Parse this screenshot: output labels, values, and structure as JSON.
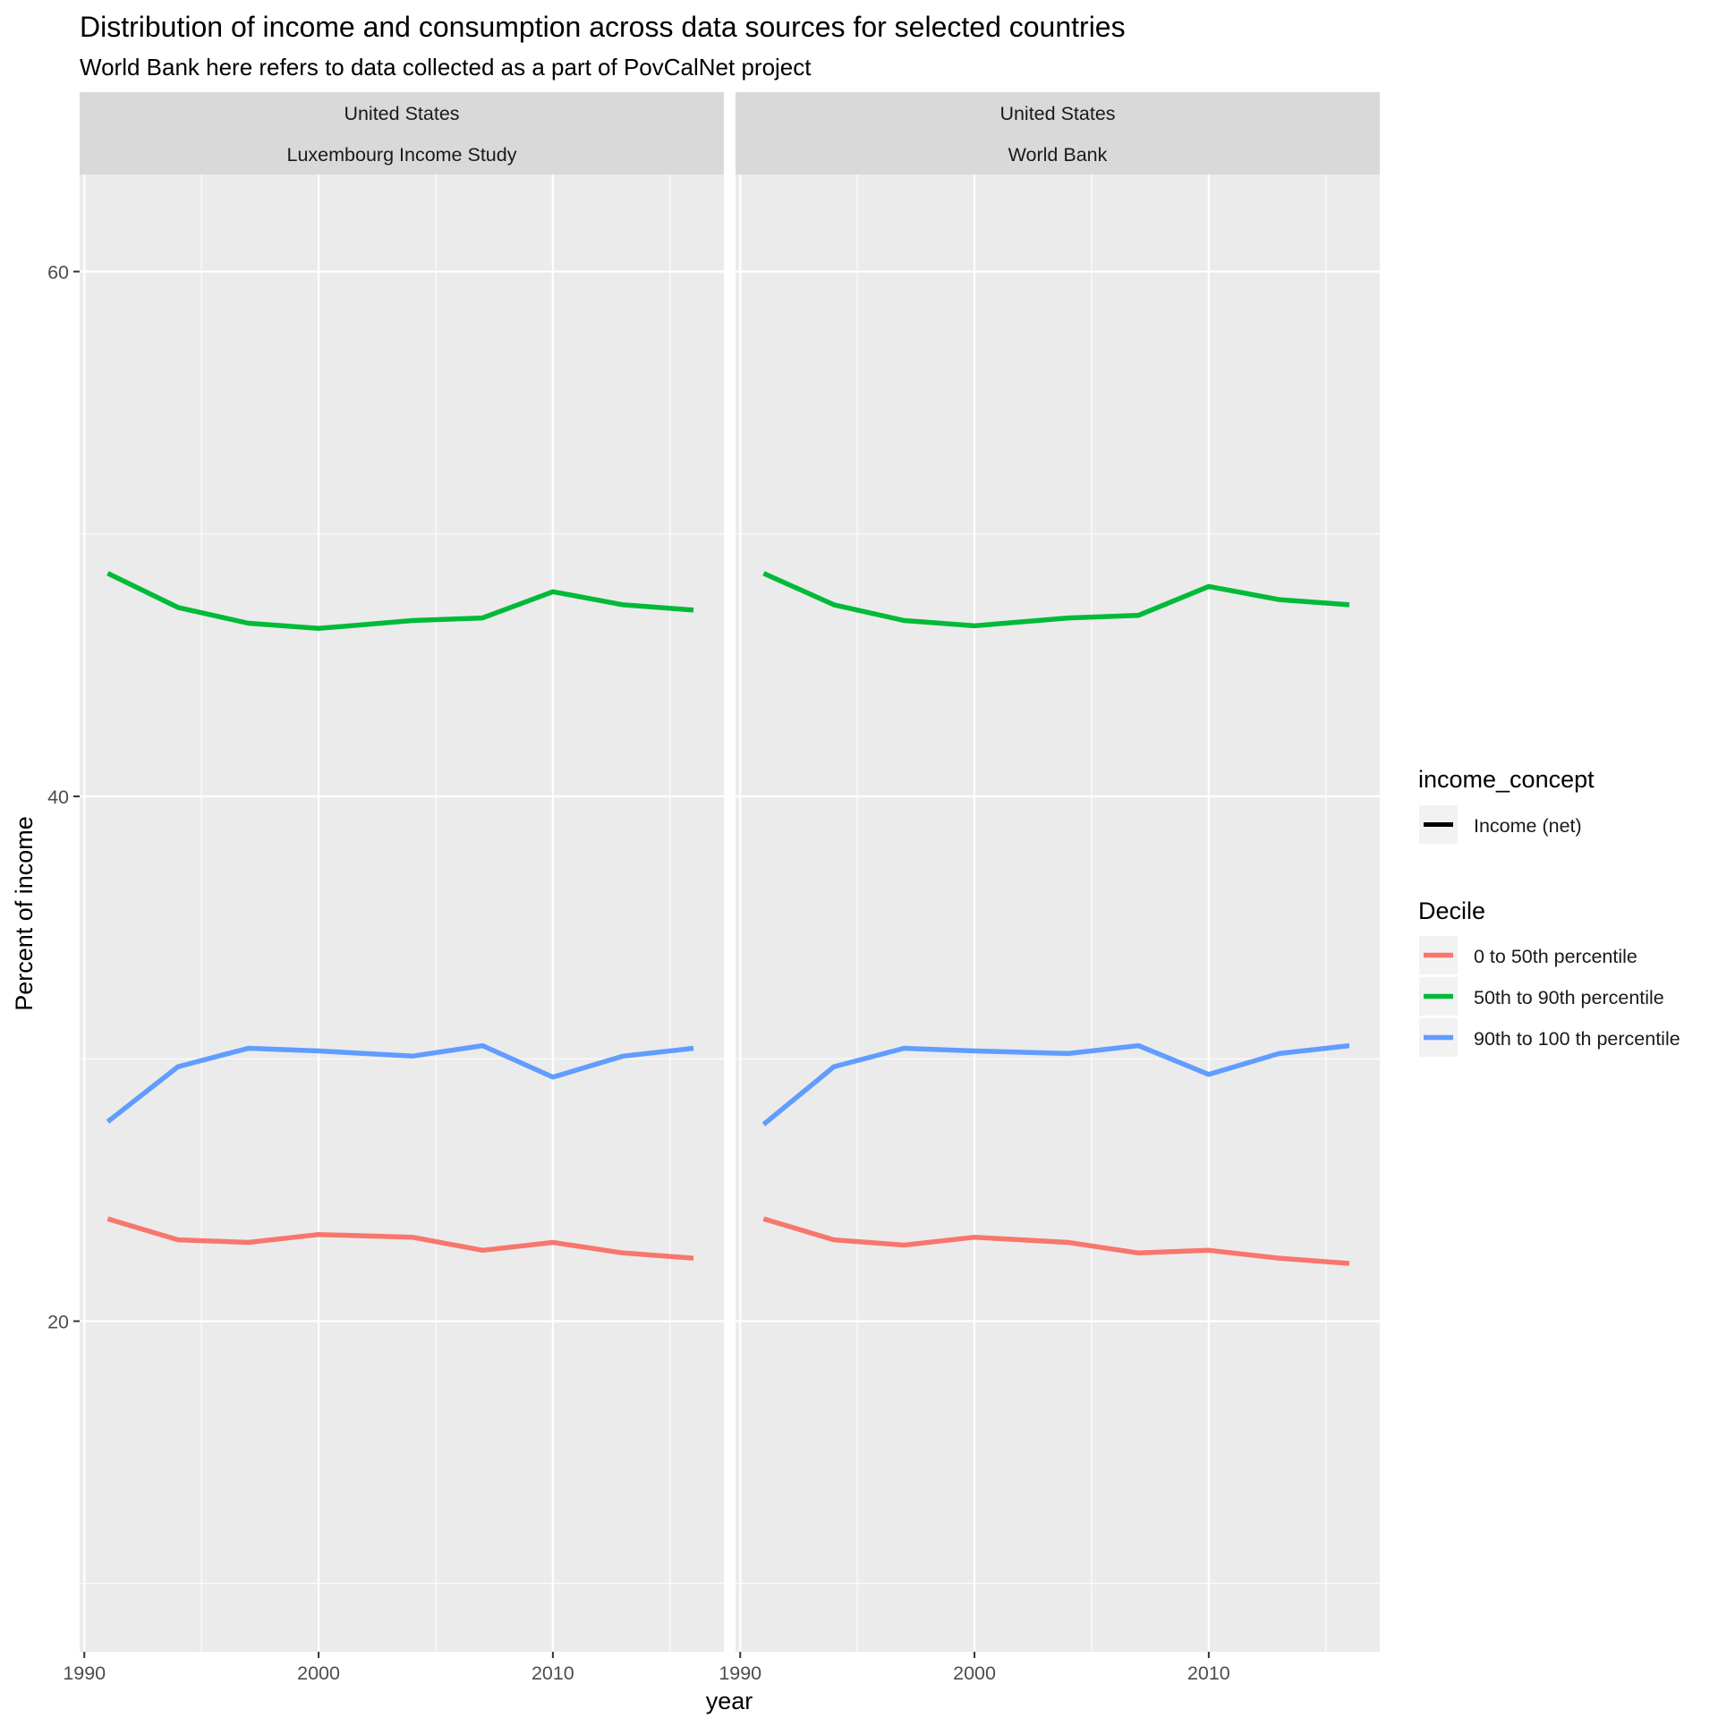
{
  "chart_data": {
    "type": "line",
    "title": "Distribution of income and consumption across data sources for selected countries",
    "subtitle": "World Bank here refers to data collected as a part of PovCalNet project",
    "xlabel": "year",
    "ylabel": "Percent of income",
    "xlim": [
      1989.8,
      2017.3
    ],
    "ylim": [
      7.4,
      63.7
    ],
    "x_ticks": [
      1990,
      2000,
      2010
    ],
    "y_ticks": [
      20,
      40,
      60
    ],
    "x_minor": [
      1995,
      2005,
      2015
    ],
    "y_minor": [
      10,
      30,
      50
    ],
    "grid": true,
    "legend": {
      "position": "right",
      "linetype_title": "income_concept",
      "linetype_entries": [
        "Income (net)"
      ],
      "color_title": "Decile",
      "color_entries": [
        {
          "label": "0 to 50th percentile",
          "color": "#F8766D"
        },
        {
          "label": "50th to 90th percentile",
          "color": "#00BA38"
        },
        {
          "label": "90th to 100 th percentile",
          "color": "#619CFF"
        }
      ]
    },
    "panels": [
      {
        "strip": [
          "United States",
          "Luxembourg Income Study"
        ],
        "series": [
          {
            "name": "0 to 50th percentile",
            "color": "#F8766D",
            "x": [
              1991,
              1994,
              1997,
              2000,
              2004,
              2007,
              2010,
              2013,
              2016
            ],
            "y": [
              23.9,
              23.1,
              23.0,
              23.3,
              23.2,
              22.7,
              23.0,
              22.6,
              22.4
            ]
          },
          {
            "name": "50th to 90th percentile",
            "color": "#00BA38",
            "x": [
              1991,
              1994,
              1997,
              2000,
              2004,
              2007,
              2010,
              2013,
              2016
            ],
            "y": [
              48.5,
              47.2,
              46.6,
              46.4,
              46.7,
              46.8,
              47.8,
              47.3,
              47.1
            ]
          },
          {
            "name": "90th to 100 th percentile",
            "color": "#619CFF",
            "x": [
              1991,
              1994,
              1997,
              2000,
              2004,
              2007,
              2010,
              2013,
              2016
            ],
            "y": [
              27.6,
              29.7,
              30.4,
              30.3,
              30.1,
              30.5,
              29.3,
              30.1,
              30.4
            ]
          }
        ]
      },
      {
        "strip": [
          "United States",
          "World Bank"
        ],
        "series": [
          {
            "name": "0 to 50th percentile",
            "color": "#F8766D",
            "x": [
              1991,
              1994,
              1997,
              2000,
              2004,
              2007,
              2010,
              2013,
              2016
            ],
            "y": [
              23.9,
              23.1,
              22.9,
              23.2,
              23.0,
              22.6,
              22.7,
              22.4,
              22.2
            ]
          },
          {
            "name": "50th to 90th percentile",
            "color": "#00BA38",
            "x": [
              1991,
              1994,
              1997,
              2000,
              2004,
              2007,
              2010,
              2013,
              2016
            ],
            "y": [
              48.5,
              47.3,
              46.7,
              46.5,
              46.8,
              46.9,
              48.0,
              47.5,
              47.3
            ]
          },
          {
            "name": "90th to 100 th percentile",
            "color": "#619CFF",
            "x": [
              1991,
              1994,
              1997,
              2000,
              2004,
              2007,
              2010,
              2013,
              2016
            ],
            "y": [
              27.5,
              29.7,
              30.4,
              30.3,
              30.2,
              30.5,
              29.4,
              30.2,
              30.5
            ]
          }
        ]
      }
    ]
  }
}
